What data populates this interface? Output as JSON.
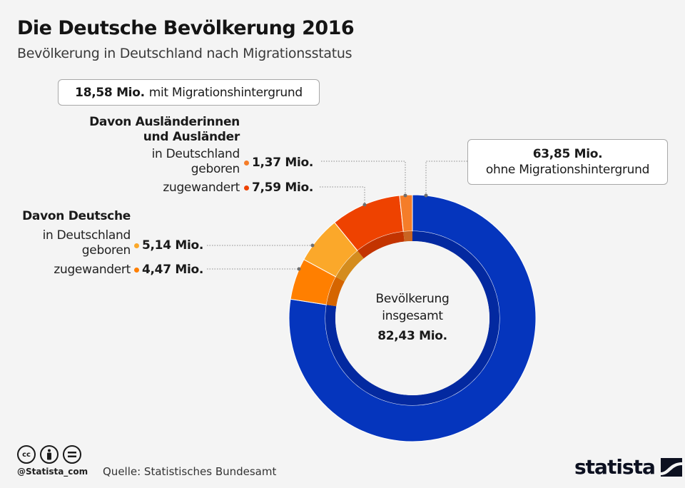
{
  "header": {
    "title": "Die Deutsche Bevölkerung 2016",
    "subtitle": "Bevölkerung in Deutschland nach Migrationsstatus"
  },
  "annotations": {
    "mit_box": {
      "value": "18,58 Mio.",
      "text": "mit Migrationshintergrund"
    },
    "ohne_box": {
      "value": "63,85 Mio.",
      "text": "ohne Migrationshintergrund"
    },
    "auslaender_head_1": "Davon Ausländerinnen",
    "auslaender_head_2": "und Ausländer",
    "deutsche_head": "Davon Deutsche",
    "geboren_1": "in Deutschland",
    "geboren_2": "geboren",
    "zugewandert": "zugewandert",
    "center_1": "Bevölkerung",
    "center_2": "insgesamt",
    "center_total": "82,43 Mio."
  },
  "labels": {
    "a_geboren": "1,37 Mio.",
    "a_zugewandert": "7,59 Mio.",
    "d_geboren": "5,14 Mio.",
    "d_zugewandert": "4,47 Mio."
  },
  "footer": {
    "handle": "@Statista_com",
    "source": "Quelle: Statistisches Bundesamt",
    "brand": "statista",
    "icons": [
      "cc-icon",
      "by-icon",
      "nd-icon"
    ]
  },
  "chart_data": {
    "type": "pie",
    "variant": "donut",
    "title": "Die Deutsche Bevölkerung 2016",
    "subtitle": "Bevölkerung in Deutschland nach Migrationsstatus",
    "unit": "Mio.",
    "total": 82.43,
    "start": "top",
    "direction": "clockwise",
    "slices": [
      {
        "name": "ohne Migrationshintergrund",
        "value": 63.85,
        "color": "#0535bd",
        "inner_color": "#0329a0"
      },
      {
        "name": "Deutsche, zugewandert",
        "value": 4.47,
        "color": "#ff7f00",
        "inner_color": "#d56500"
      },
      {
        "name": "Deutsche, in Deutschland geboren",
        "value": 5.14,
        "color": "#fba82a",
        "inner_color": "#d48c1e"
      },
      {
        "name": "Ausländer, zugewandert",
        "value": 7.59,
        "color": "#ee4200",
        "inner_color": "#c33400"
      },
      {
        "name": "Ausländer, in Deutschland geboren",
        "value": 1.37,
        "color": "#f57d29",
        "inner_color": "#c96422"
      }
    ],
    "groups": [
      {
        "name": "mit Migrationshintergrund",
        "value": 18.58
      },
      {
        "name": "ohne Migrationshintergrund",
        "value": 63.85
      }
    ]
  }
}
